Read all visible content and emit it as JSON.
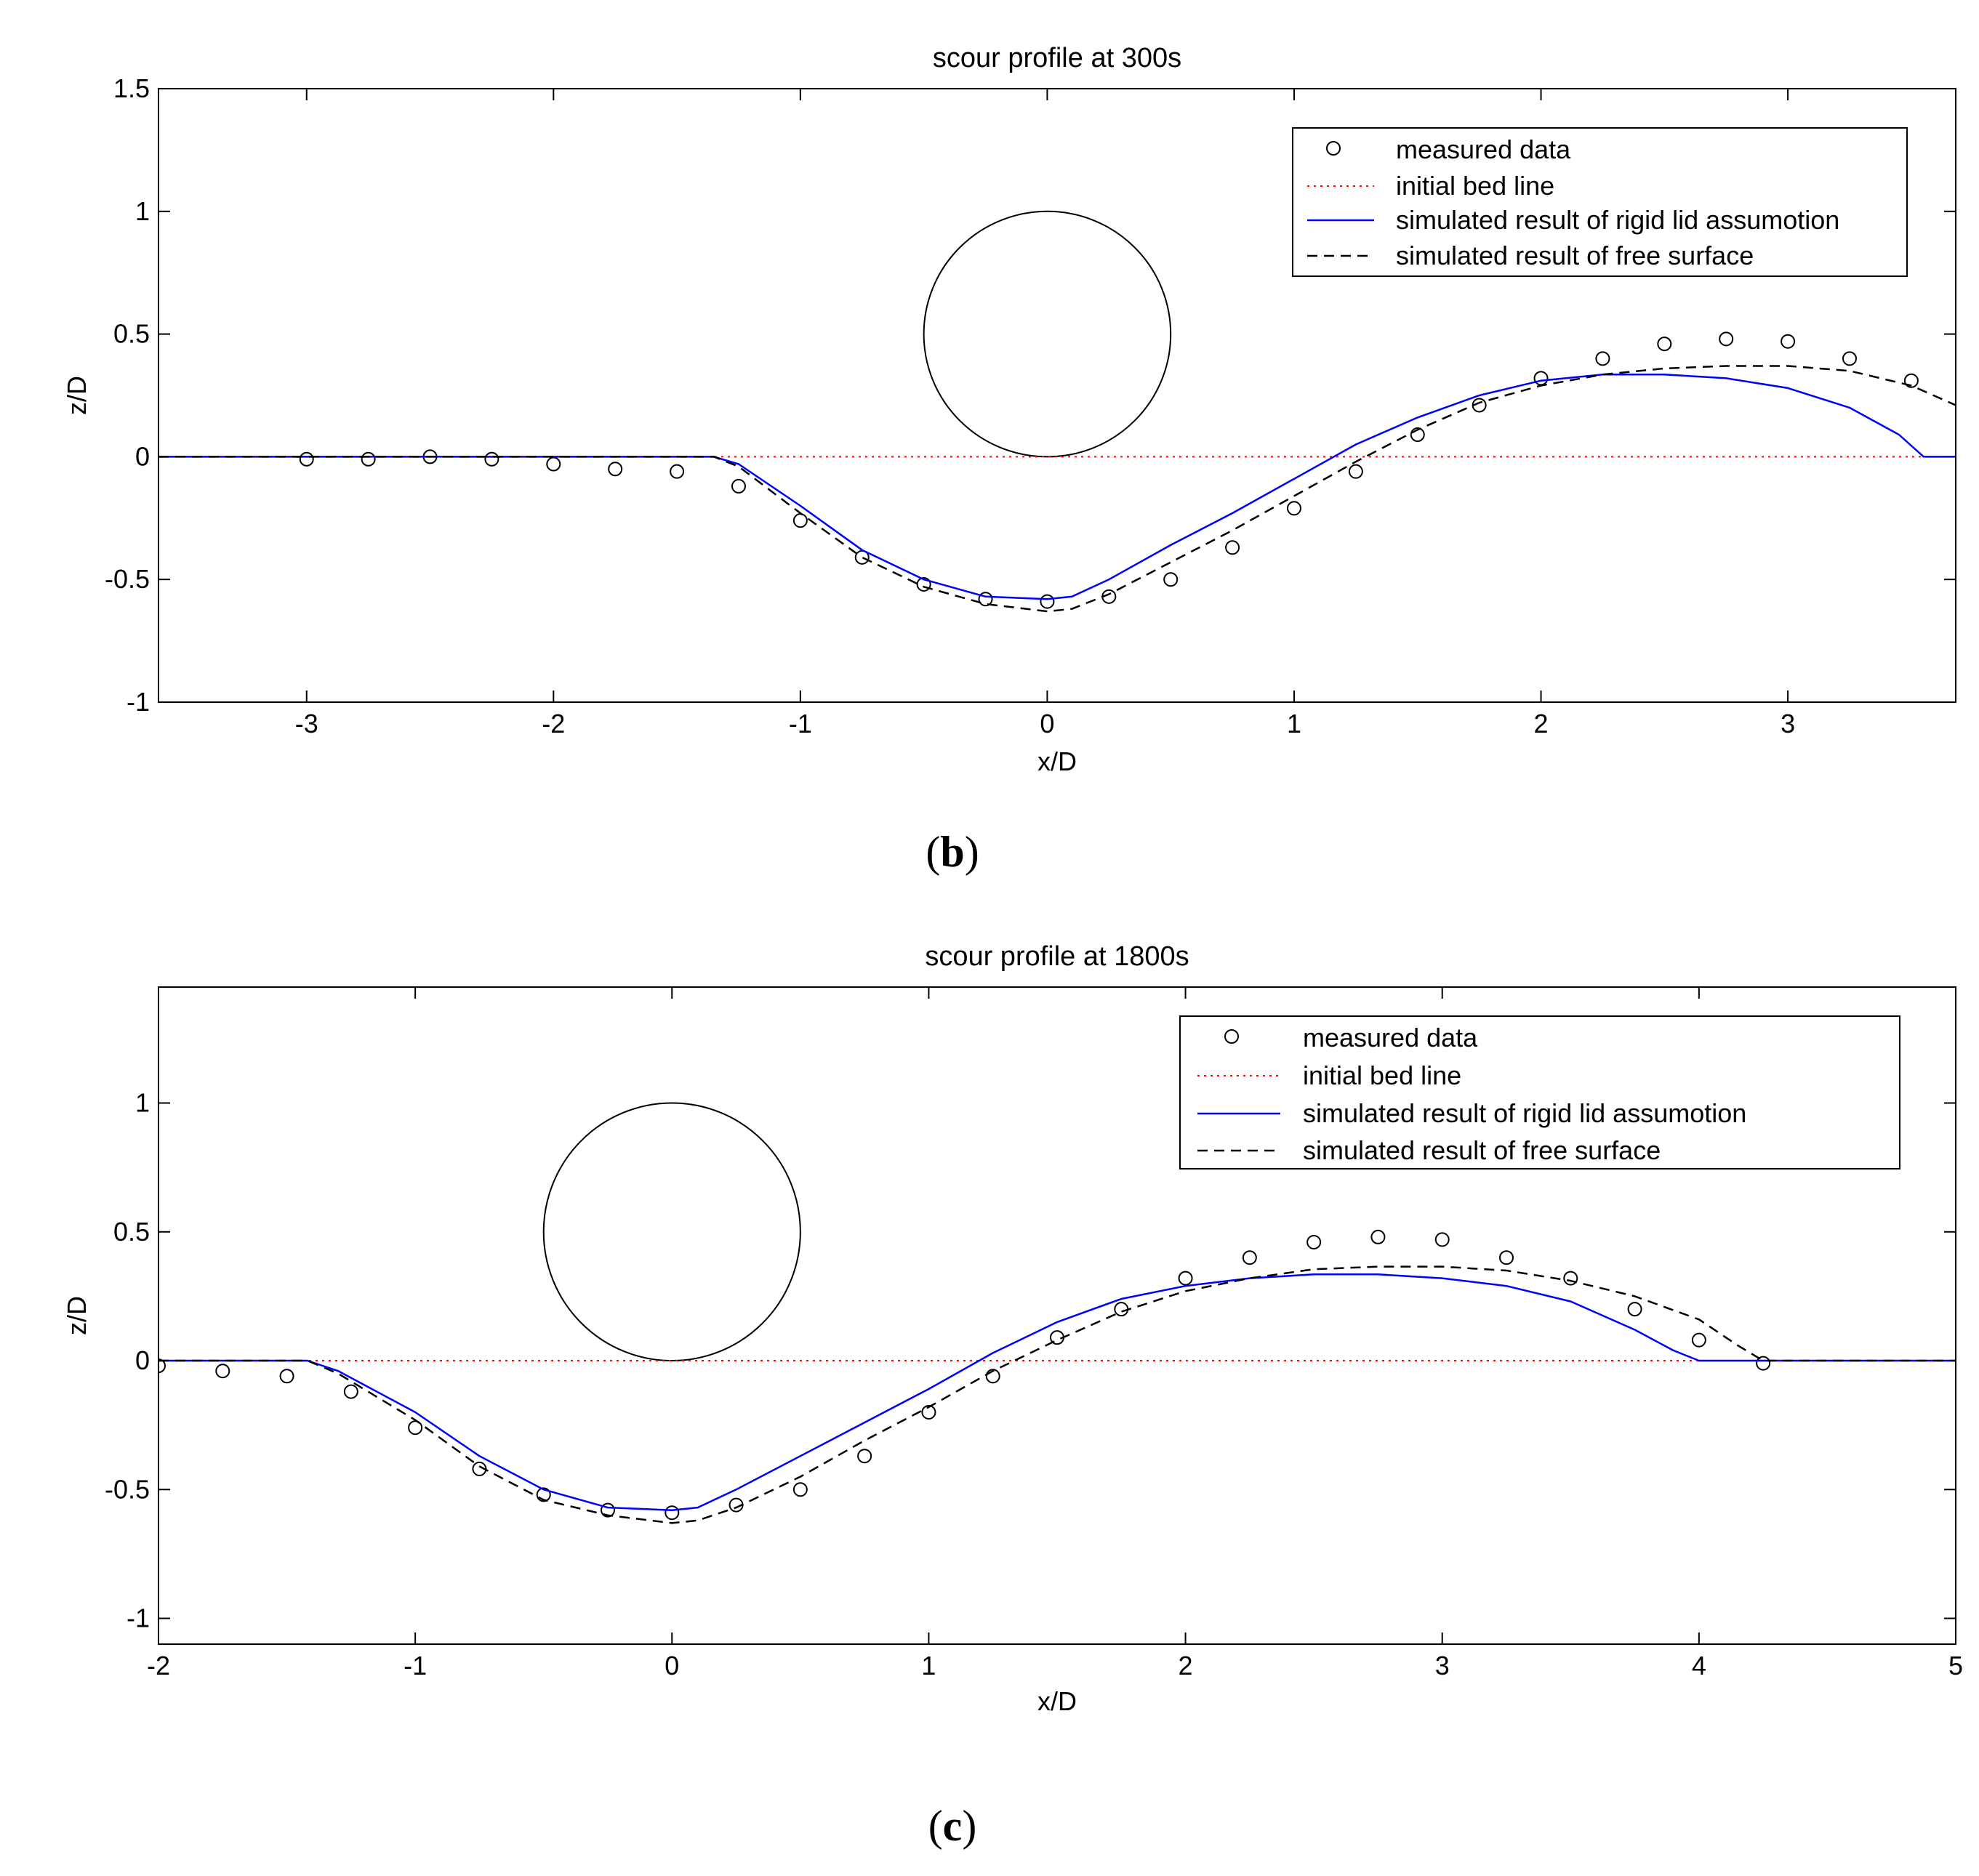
{
  "chart_data": [
    {
      "type": "line",
      "panel_label_prefix": "(",
      "panel_label": "b",
      "panel_label_suffix": ")",
      "title": "scour profile at 300s",
      "xlabel": "x/D",
      "ylabel": "z/D",
      "xlim": [
        -3.6,
        3.68
      ],
      "ylim": [
        -1,
        1.5
      ],
      "xticks": [
        -3,
        -2,
        -1,
        0,
        1,
        2,
        3
      ],
      "xtick_labels": [
        "-3",
        "-2",
        "-1",
        "0",
        "1",
        "2",
        "3"
      ],
      "yticks": [
        -1,
        -0.5,
        0,
        0.5,
        1,
        1.5
      ],
      "ytick_labels": [
        "-1",
        "-0.5",
        "0",
        "0.5",
        "1",
        "1.5"
      ],
      "grid": false,
      "legend_position": "top-right",
      "cylinder": {
        "center_x": 0,
        "center_z": 0.5,
        "radius": 0.5,
        "color": "#000000"
      },
      "series": [
        {
          "name": "measured data",
          "style": "markers",
          "color": "#000000",
          "x": [
            -3,
            -2.75,
            -2.5,
            -2.25,
            -2,
            -1.75,
            -1.5,
            -1.25,
            -1,
            -0.75,
            -0.5,
            -0.25,
            0,
            0.25,
            0.5,
            0.75,
            1,
            1.25,
            1.5,
            1.75,
            2,
            2.25,
            2.5,
            2.75,
            3,
            3.25,
            3.5
          ],
          "y": [
            -0.01,
            -0.01,
            0,
            -0.01,
            -0.03,
            -0.05,
            -0.06,
            -0.12,
            -0.26,
            -0.41,
            -0.52,
            -0.58,
            -0.59,
            -0.57,
            -0.5,
            -0.37,
            -0.21,
            -0.06,
            0.09,
            0.21,
            0.32,
            0.4,
            0.46,
            0.48,
            0.47,
            0.4,
            0.31
          ]
        },
        {
          "name": "initial bed line",
          "style": "dotted",
          "color": "#ff0000",
          "x": [
            -3.6,
            3.68
          ],
          "y": [
            0,
            0
          ]
        },
        {
          "name": "simulated result of rigid lid assumotion",
          "style": "solid",
          "color": "#0000ff",
          "x": [
            -3.6,
            -1.35,
            -1.25,
            -1.0,
            -0.75,
            -0.5,
            -0.25,
            0,
            0.1,
            0.25,
            0.5,
            0.75,
            1.0,
            1.25,
            1.5,
            1.75,
            2.0,
            2.25,
            2.5,
            2.75,
            3.0,
            3.25,
            3.45,
            3.55,
            3.68
          ],
          "y": [
            0,
            0,
            -0.03,
            -0.2,
            -0.38,
            -0.5,
            -0.57,
            -0.58,
            -0.57,
            -0.5,
            -0.36,
            -0.23,
            -0.09,
            0.05,
            0.16,
            0.25,
            0.31,
            0.335,
            0.335,
            0.32,
            0.28,
            0.2,
            0.09,
            0,
            0
          ]
        },
        {
          "name": "simulated result of free surface",
          "style": "dashed",
          "color": "#000000",
          "x": [
            -3.6,
            -1.35,
            -1.25,
            -1.0,
            -0.75,
            -0.5,
            -0.25,
            0,
            0.1,
            0.25,
            0.5,
            0.75,
            1.0,
            1.25,
            1.5,
            1.75,
            2.0,
            2.25,
            2.5,
            2.75,
            3.0,
            3.25,
            3.5,
            3.68
          ],
          "y": [
            0,
            0,
            -0.04,
            -0.23,
            -0.41,
            -0.53,
            -0.6,
            -0.63,
            -0.62,
            -0.56,
            -0.43,
            -0.3,
            -0.16,
            -0.02,
            0.11,
            0.22,
            0.29,
            0.335,
            0.36,
            0.37,
            0.37,
            0.35,
            0.29,
            0.21
          ]
        }
      ]
    },
    {
      "type": "line",
      "panel_label_prefix": "(",
      "panel_label": "c",
      "panel_label_suffix": ")",
      "title": "scour profile at 1800s",
      "xlabel": "x/D",
      "ylabel": "z/D",
      "xlim": [
        -2,
        5
      ],
      "ylim": [
        -1.1,
        1.45
      ],
      "xticks": [
        -2,
        -1,
        0,
        1,
        2,
        3,
        4,
        5
      ],
      "xtick_labels": [
        "-2",
        "-1",
        "0",
        "1",
        "2",
        "3",
        "4",
        "5"
      ],
      "yticks": [
        -1,
        -0.5,
        0,
        0.5,
        1
      ],
      "ytick_labels": [
        "-1",
        "-0.5",
        "0",
        "0.5",
        "1"
      ],
      "grid": false,
      "legend_position": "top-right",
      "cylinder": {
        "center_x": 0,
        "center_z": 0.5,
        "radius": 0.5,
        "color": "#000000"
      },
      "series": [
        {
          "name": "measured data",
          "style": "markers",
          "color": "#000000",
          "x": [
            -2,
            -1.75,
            -1.5,
            -1.25,
            -1,
            -0.75,
            -0.5,
            -0.25,
            0,
            0.25,
            0.5,
            0.75,
            1,
            1.25,
            1.5,
            1.75,
            2,
            2.25,
            2.5,
            2.75,
            3,
            3.25,
            3.5,
            3.75,
            4,
            4.25
          ],
          "y": [
            -0.02,
            -0.04,
            -0.06,
            -0.12,
            -0.26,
            -0.42,
            -0.52,
            -0.58,
            -0.59,
            -0.56,
            -0.5,
            -0.37,
            -0.2,
            -0.06,
            0.09,
            0.2,
            0.32,
            0.4,
            0.46,
            0.48,
            0.47,
            0.4,
            0.32,
            0.2,
            0.08,
            -0.01
          ]
        },
        {
          "name": "initial bed line",
          "style": "dotted",
          "color": "#ff0000",
          "x": [
            -2,
            5
          ],
          "y": [
            0,
            0
          ]
        },
        {
          "name": "simulated result of rigid lid assumotion",
          "style": "solid",
          "color": "#0000ff",
          "x": [
            -2,
            -1.42,
            -1.3,
            -1.0,
            -0.75,
            -0.5,
            -0.25,
            0,
            0.1,
            0.25,
            0.5,
            0.75,
            1.0,
            1.25,
            1.5,
            1.75,
            2.0,
            2.25,
            2.5,
            2.75,
            3.0,
            3.25,
            3.5,
            3.75,
            3.9,
            4.0,
            5.0
          ],
          "y": [
            0,
            0,
            -0.04,
            -0.2,
            -0.37,
            -0.5,
            -0.57,
            -0.58,
            -0.57,
            -0.5,
            -0.37,
            -0.24,
            -0.11,
            0.03,
            0.15,
            0.24,
            0.29,
            0.32,
            0.335,
            0.335,
            0.32,
            0.29,
            0.23,
            0.12,
            0.04,
            0,
            0
          ]
        },
        {
          "name": "simulated result of free surface",
          "style": "dashed",
          "color": "#000000",
          "x": [
            -2,
            -1.42,
            -1.3,
            -1.0,
            -0.75,
            -0.5,
            -0.25,
            0,
            0.1,
            0.25,
            0.5,
            0.75,
            1.0,
            1.25,
            1.5,
            1.75,
            2.0,
            2.25,
            2.5,
            2.75,
            3.0,
            3.25,
            3.5,
            3.75,
            4.0,
            4.15,
            4.25,
            5.0
          ],
          "y": [
            0,
            0,
            -0.05,
            -0.23,
            -0.41,
            -0.54,
            -0.6,
            -0.63,
            -0.62,
            -0.57,
            -0.45,
            -0.31,
            -0.18,
            -0.04,
            0.08,
            0.19,
            0.27,
            0.32,
            0.355,
            0.365,
            0.365,
            0.35,
            0.31,
            0.25,
            0.16,
            0.06,
            0,
            0
          ]
        }
      ]
    }
  ]
}
